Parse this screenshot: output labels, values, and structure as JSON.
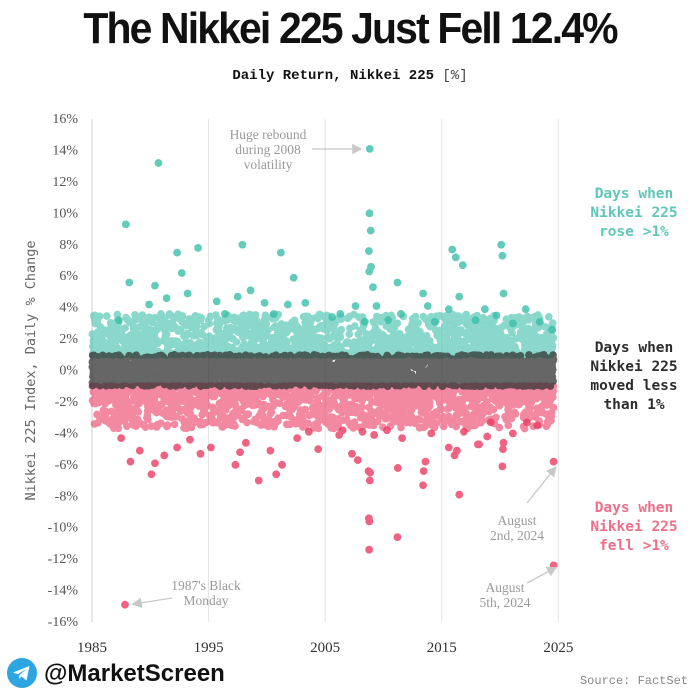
{
  "header": {
    "title": "The Nikkei 225 Just Fell 12.4%",
    "subtitle": "Daily Return, Nikkei 225",
    "subtitle_unit": "[%]"
  },
  "side_labels": {
    "rose": [
      "Days when",
      "Nikkei 225",
      "rose >1%"
    ],
    "flat": [
      "Days when",
      "Nikkei 225",
      "moved less",
      "than 1%"
    ],
    "fell": [
      "Days when",
      "Nikkei 225",
      "fell >1%"
    ]
  },
  "colors": {
    "rose": "#3cbfa9",
    "flat": "#333333",
    "fell": "#ea3c63",
    "annotation": "#9a9a9a",
    "grid": "#e4e4e4"
  },
  "footer": {
    "handle": "@MarketScreen",
    "source": "Source: FactSet",
    "icon": "telegram-icon"
  },
  "chart_data": {
    "type": "scatter",
    "title": "The Nikkei 225 Just Fell 12.4%",
    "subtitle": "Daily Return, Nikkei 225 [%]",
    "xlabel": "",
    "ylabel": "Nikkei 225 Index, Daily % Change",
    "xlim": [
      1985,
      2026
    ],
    "ylim": [
      -16,
      16
    ],
    "x_ticks": [
      "1985",
      "1995",
      "2005",
      "2015",
      "2025"
    ],
    "y_ticks": [
      "16%",
      "14%",
      "12%",
      "10%",
      "8%",
      "6%",
      "4%",
      "2%",
      "0%",
      "-2%",
      "-4%",
      "-6%",
      "-8%",
      "-10%",
      "-12%",
      "-14%",
      "-16%"
    ],
    "grid": "vertical",
    "series": [
      {
        "name": "Days when Nikkei 225 rose >1%",
        "points": [
          [
            1987.9,
            9.3
          ],
          [
            1990.7,
            13.2
          ],
          [
            1987.3,
            3.2
          ],
          [
            1988.2,
            5.6
          ],
          [
            1989.9,
            4.2
          ],
          [
            1990.4,
            5.4
          ],
          [
            1991.4,
            4.6
          ],
          [
            1992.3,
            7.5
          ],
          [
            1992.7,
            6.2
          ],
          [
            1993.2,
            4.9
          ],
          [
            1994.1,
            7.8
          ],
          [
            1995.7,
            4.4
          ],
          [
            1996.4,
            3.6
          ],
          [
            1997.5,
            4.7
          ],
          [
            1997.9,
            8.0
          ],
          [
            1998.6,
            5.1
          ],
          [
            1999.8,
            4.3
          ],
          [
            2000.6,
            3.6
          ],
          [
            2001.2,
            7.5
          ],
          [
            2001.8,
            4.2
          ],
          [
            2002.3,
            5.9
          ],
          [
            2003.3,
            4.3
          ],
          [
            2005.6,
            3.4
          ],
          [
            2006.3,
            3.6
          ],
          [
            2007.6,
            4.1
          ],
          [
            2008.4,
            3.1
          ],
          [
            2008.75,
            7.6
          ],
          [
            2008.78,
            6.3
          ],
          [
            2008.8,
            10.0
          ],
          [
            2008.82,
            14.1
          ],
          [
            2008.9,
            8.9
          ],
          [
            2008.93,
            6.6
          ],
          [
            2009.1,
            5.3
          ],
          [
            2009.4,
            4.1
          ],
          [
            2010.4,
            3.2
          ],
          [
            2011.2,
            5.6
          ],
          [
            2011.5,
            3.6
          ],
          [
            2013.4,
            4.9
          ],
          [
            2013.8,
            4.1
          ],
          [
            2014.4,
            3.1
          ],
          [
            2015.6,
            3.9
          ],
          [
            2015.9,
            7.7
          ],
          [
            2016.2,
            7.2
          ],
          [
            2016.5,
            4.7
          ],
          [
            2016.8,
            6.7
          ],
          [
            2017.9,
            3.2
          ],
          [
            2018.7,
            3.9
          ],
          [
            2019.7,
            3.5
          ],
          [
            2020.1,
            8.0
          ],
          [
            2020.2,
            7.3
          ],
          [
            2020.3,
            4.9
          ],
          [
            2021.1,
            3.0
          ],
          [
            2022.2,
            3.9
          ],
          [
            2023.4,
            3.1
          ],
          [
            2024.45,
            2.6
          ]
        ]
      },
      {
        "name": "Days when Nikkei 225 moved less than 1%",
        "range": [
          -1,
          1
        ],
        "x_range": [
          1985,
          2024.6
        ]
      },
      {
        "name": "Days when Nikkei 225 fell >1%",
        "points": [
          [
            1987.83,
            -14.9
          ],
          [
            1987.5,
            -4.3
          ],
          [
            1988.3,
            -5.8
          ],
          [
            1989.1,
            -5.1
          ],
          [
            1990.1,
            -6.6
          ],
          [
            1990.4,
            -5.9
          ],
          [
            1991.2,
            -5.4
          ],
          [
            1992.3,
            -4.9
          ],
          [
            1993.4,
            -4.4
          ],
          [
            1994.3,
            -5.3
          ],
          [
            1995.2,
            -4.9
          ],
          [
            1997.3,
            -6.0
          ],
          [
            1997.7,
            -5.2
          ],
          [
            1998.2,
            -4.6
          ],
          [
            1999.3,
            -7.0
          ],
          [
            2000.3,
            -5.1
          ],
          [
            2000.8,
            -6.6
          ],
          [
            2001.3,
            -6.0
          ],
          [
            2002.6,
            -4.3
          ],
          [
            2003.6,
            -3.9
          ],
          [
            2004.4,
            -5.0
          ],
          [
            2006.2,
            -4.1
          ],
          [
            2006.5,
            -3.8
          ],
          [
            2007.3,
            -5.3
          ],
          [
            2007.8,
            -5.7
          ],
          [
            2008.2,
            -3.9
          ],
          [
            2008.72,
            -6.4
          ],
          [
            2008.75,
            -9.4
          ],
          [
            2008.77,
            -11.4
          ],
          [
            2008.79,
            -9.6
          ],
          [
            2008.83,
            -7.0
          ],
          [
            2008.86,
            -6.5
          ],
          [
            2009.2,
            -4.1
          ],
          [
            2010.3,
            -3.8
          ],
          [
            2011.2,
            -10.6
          ],
          [
            2011.23,
            -6.2
          ],
          [
            2011.6,
            -4.3
          ],
          [
            2013.4,
            -7.3
          ],
          [
            2013.45,
            -6.4
          ],
          [
            2013.6,
            -5.8
          ],
          [
            2014.1,
            -4.0
          ],
          [
            2015.6,
            -4.9
          ],
          [
            2016.1,
            -5.4
          ],
          [
            2016.3,
            -5.1
          ],
          [
            2016.5,
            -7.9
          ],
          [
            2016.9,
            -3.9
          ],
          [
            2018.1,
            -4.7
          ],
          [
            2018.2,
            -4.7
          ],
          [
            2018.9,
            -4.2
          ],
          [
            2019.2,
            -3.3
          ],
          [
            2020.2,
            -6.1
          ],
          [
            2020.25,
            -5.0
          ],
          [
            2020.3,
            -4.6
          ],
          [
            2021.1,
            -4.0
          ],
          [
            2022.3,
            -3.3
          ],
          [
            2023.2,
            -3.5
          ],
          [
            2024.59,
            -5.8
          ],
          [
            2024.6,
            -12.4
          ]
        ]
      }
    ],
    "annotations": [
      {
        "text": [
          "Huge rebound",
          "during 2008",
          "volatility"
        ],
        "x": 2008.82,
        "y": 14.1
      },
      {
        "text": [
          "1987's Black",
          "Monday"
        ],
        "x": 1987.83,
        "y": -14.9
      },
      {
        "text": [
          "August",
          "2nd, 2024"
        ],
        "x": 2024.59,
        "y": -5.8
      },
      {
        "text": [
          "August",
          "5th, 2024"
        ],
        "x": 2024.6,
        "y": -12.4
      }
    ]
  }
}
